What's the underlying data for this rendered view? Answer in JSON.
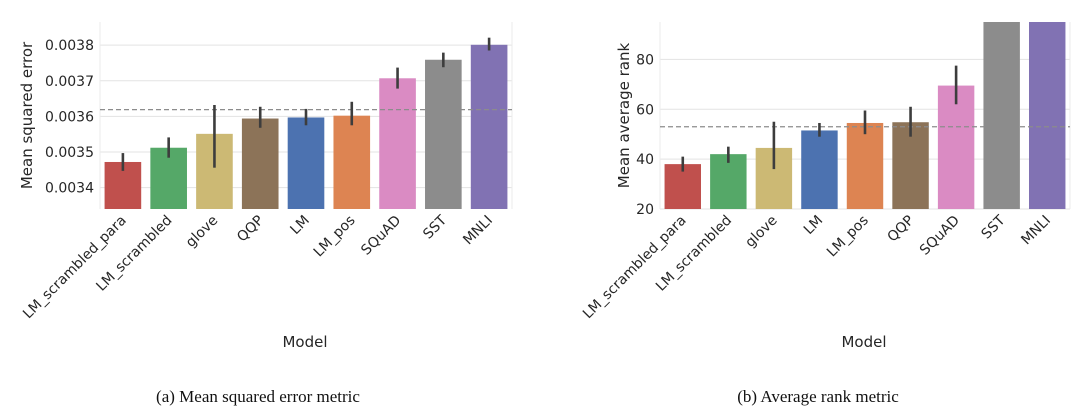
{
  "chart_data": [
    {
      "type": "bar",
      "caption": "(a) Mean squared error metric",
      "xlabel": "Model",
      "ylabel": "Mean squared error",
      "ylim": [
        0.00334,
        0.003865
      ],
      "yticks": [
        0.0034,
        0.0035,
        0.0036,
        0.0037,
        0.0038
      ],
      "ytick_labels": [
        "0.0034",
        "0.0035",
        "0.0036",
        "0.0037",
        "0.0038"
      ],
      "grid": true,
      "reference_line": 0.003619,
      "categories": [
        "LM_scrambled_para",
        "LM_scrambled",
        "glove",
        "QQP",
        "LM",
        "LM_pos",
        "SQuAD",
        "SST",
        "MNLI"
      ],
      "values": [
        0.003472,
        0.003512,
        0.003551,
        0.003594,
        0.003597,
        0.003602,
        0.003707,
        0.003759,
        0.003801
      ],
      "error_low": [
        0.003447,
        0.003484,
        0.003456,
        0.003568,
        0.003575,
        0.003575,
        0.003678,
        0.003738,
        0.003785
      ],
      "error_high": [
        0.003497,
        0.003541,
        0.003632,
        0.003627,
        0.003621,
        0.003641,
        0.003737,
        0.003779,
        0.003821
      ],
      "colors": [
        "#c0504d",
        "#55a868",
        "#ccb974",
        "#8c7358",
        "#4c72b0",
        "#dd8452",
        "#da8bc3",
        "#8c8c8c",
        "#8172b3"
      ]
    },
    {
      "type": "bar",
      "caption": "(b) Average rank metric",
      "xlabel": "Model",
      "ylabel": "Mean average rank",
      "ylim": [
        20,
        95
      ],
      "yticks": [
        20,
        40,
        60,
        80
      ],
      "ytick_labels": [
        "20",
        "40",
        "60",
        "80"
      ],
      "grid": true,
      "reference_line": 53,
      "categories": [
        "LM_scrambled_para",
        "LM_scrambled",
        "glove",
        "LM",
        "LM_pos",
        "QQP",
        "SQuAD",
        "SST",
        "MNLI"
      ],
      "values": [
        38,
        42,
        44.5,
        51.5,
        54.5,
        54.8,
        69.5,
        95,
        95
      ],
      "error_low": [
        35,
        38.5,
        36,
        49,
        50,
        49,
        62,
        null,
        null
      ],
      "error_high": [
        41,
        45,
        55,
        54.5,
        59.5,
        61,
        77.5,
        null,
        null
      ],
      "colors": [
        "#c0504d",
        "#55a868",
        "#ccb974",
        "#4c72b0",
        "#dd8452",
        "#8c7358",
        "#da8bc3",
        "#8c8c8c",
        "#8172b3"
      ]
    }
  ]
}
